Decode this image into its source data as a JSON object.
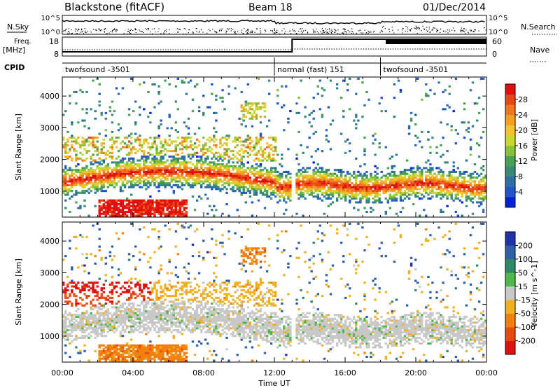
{
  "header": {
    "station": "Blackstone (fitACF)",
    "beam": "Beam 18",
    "date": "01/Dec/2014"
  },
  "labels": {
    "nsky": "N.Sky",
    "nsearch": "N.Search",
    "freq_line1": "Freq.",
    "freq_line2": "[MHz]",
    "nave": "Nave",
    "cpid": "CPID",
    "noise_ticks_left": [
      "10^5",
      "10^0"
    ],
    "noise_ticks_right": [
      "10^5",
      "10^0"
    ],
    "freq_ticks": [
      "18",
      "8"
    ],
    "nave_ticks": [
      "60",
      "0"
    ]
  },
  "cpid_segments": [
    {
      "name": "twofsound -3501",
      "start_hour": 0
    },
    {
      "name": "normal (fast) 151",
      "start_hour": 12
    },
    {
      "name": "twofsound -3501",
      "start_hour": 18
    }
  ],
  "chart_data": [
    {
      "type": "heatmap",
      "panel": "power",
      "ylabel": "Slant Range [km]",
      "xlabel": "Time UT",
      "x_ticks": [
        "00:00",
        "04:00",
        "08:00",
        "12:00",
        "16:00",
        "20:00",
        "00:00"
      ],
      "x_range_hours": [
        0,
        24
      ],
      "y_ticks": [
        1000,
        2000,
        3000,
        4000
      ],
      "y_range_km": [
        180,
        4600
      ],
      "colorbar": {
        "label": "Power [dB]",
        "ticks": [
          4,
          8,
          12,
          16,
          20,
          24,
          28
        ],
        "range": [
          0,
          32
        ],
        "colors": [
          "#0022dd",
          "#2255cc",
          "#2f6fa8",
          "#3a8a78",
          "#4aa055",
          "#86c23a",
          "#c9d930",
          "#f2c230",
          "#f3a020",
          "#f07820",
          "#e84818",
          "#e01010"
        ]
      }
    },
    {
      "type": "heatmap",
      "panel": "velocity",
      "ylabel": "Slant Range [km]",
      "xlabel": "Time UT",
      "x_ticks": [
        "00:00",
        "04:00",
        "08:00",
        "12:00",
        "16:00",
        "20:00",
        "00:00"
      ],
      "x_range_hours": [
        0,
        24
      ],
      "y_ticks": [
        1000,
        2000,
        3000,
        4000
      ],
      "y_range_km": [
        180,
        4600
      ],
      "colorbar": {
        "label": "Velocity [m s^-1]",
        "ticks": [
          200,
          100,
          50,
          15,
          -15,
          -50,
          -100,
          -200
        ],
        "colors": [
          "#2233aa",
          "#2f5fa6",
          "#2e8a66",
          "#4fb848",
          "#c8c8c8",
          "#f0b020",
          "#f08010",
          "#e84a10",
          "#e01010"
        ]
      }
    }
  ]
}
